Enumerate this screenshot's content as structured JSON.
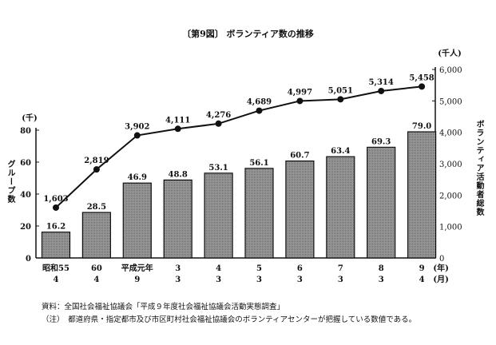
{
  "chart_data": {
    "type": "bar+line",
    "title": "〔第9図〕 ボランティア数の推移",
    "categories": [
      {
        "year": "昭和55",
        "month": "4"
      },
      {
        "year": "60",
        "month": "4"
      },
      {
        "year": "平成元年",
        "month": "9"
      },
      {
        "year": "3",
        "month": "3"
      },
      {
        "year": "4",
        "month": "3"
      },
      {
        "year": "5",
        "month": "3"
      },
      {
        "year": "6",
        "month": "3"
      },
      {
        "year": "7",
        "month": "3"
      },
      {
        "year": "8",
        "month": "3"
      },
      {
        "year": "9",
        "month": "4"
      }
    ],
    "x_unit_year": "(年)",
    "x_unit_month": "(月)",
    "series": [
      {
        "name": "グループ数",
        "type": "bar",
        "axis": "left",
        "values": [
          16.2,
          28.5,
          46.9,
          48.8,
          53.1,
          56.1,
          60.7,
          63.4,
          69.3,
          79.0
        ],
        "labels": [
          "16.2",
          "28.5",
          "46.9",
          "48.8",
          "53.1",
          "56.1",
          "60.7",
          "63.4",
          "69.3",
          "79.0"
        ]
      },
      {
        "name": "ボランティア活動者総数",
        "type": "line",
        "axis": "right",
        "values": [
          1603,
          2819,
          3902,
          4111,
          4276,
          4689,
          4997,
          5051,
          5314,
          5458
        ],
        "labels": [
          "1,603",
          "2,819",
          "3,902",
          "4,111",
          "4,276",
          "4,689",
          "4,997",
          "5,051",
          "5,314",
          "5,458"
        ]
      }
    ],
    "left_axis": {
      "label": "グループ数",
      "unit": "(千)",
      "ylim": [
        0,
        80
      ],
      "ticks": [
        "0",
        "20",
        "40",
        "60",
        "80"
      ]
    },
    "right_axis": {
      "label": "ボランティア活動者総数",
      "unit": "(千人)",
      "ylim": [
        0,
        6000
      ],
      "ticks": [
        "0",
        "1,000",
        "2,000",
        "3,000",
        "4,000",
        "5,000",
        "6,000"
      ]
    },
    "bar_color": "#9a9a9a",
    "grid": false
  },
  "notes": {
    "source": "資料：全国社会福祉協議会「平成９年度社会福祉協議会活動実態調査」",
    "note": "（注）　都道府県・指定都市及び市区町村社会福祉協議会のボランティアセンターが把握している数値である。"
  }
}
